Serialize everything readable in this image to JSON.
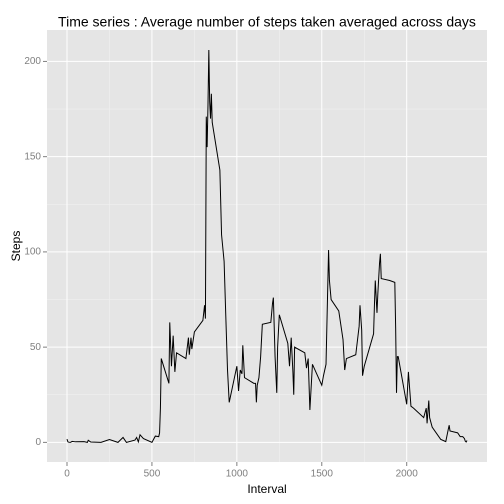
{
  "chart_data": {
    "type": "line",
    "title": "Time series : Average number of steps taken averaged across days",
    "x_label": "Interval",
    "y_label": "Steps",
    "xlim": [
      -117.75,
      2472.75
    ],
    "ylim": [
      -10.3,
      216.5
    ],
    "xticks": [
      0,
      500,
      1000,
      1500,
      2000
    ],
    "yticks": [
      0,
      50,
      100,
      150,
      200
    ],
    "grid": true,
    "series": [
      {
        "name": "Steps",
        "color": "#000000",
        "x": [
          0,
          5,
          10,
          20,
          30,
          50,
          100,
          120,
          125,
          140,
          200,
          250,
          300,
          330,
          350,
          400,
          410,
          420,
          430,
          440,
          450,
          500,
          520,
          540,
          545,
          550,
          555,
          600,
          605,
          615,
          625,
          635,
          645,
          700,
          715,
          720,
          730,
          735,
          750,
          800,
          810,
          815,
          820,
          825,
          830,
          835,
          840,
          845,
          850,
          855,
          900,
          910,
          925,
          935,
          945,
          955,
          1000,
          1010,
          1020,
          1030,
          1035,
          1045,
          1100,
          1110,
          1115,
          1120,
          1130,
          1140,
          1150,
          1200,
          1210,
          1215,
          1225,
          1235,
          1240,
          1250,
          1300,
          1310,
          1320,
          1330,
          1335,
          1340,
          1400,
          1410,
          1420,
          1430,
          1445,
          1500,
          1510,
          1525,
          1540,
          1545,
          1555,
          1600,
          1615,
          1625,
          1635,
          1645,
          1700,
          1720,
          1725,
          1735,
          1740,
          1750,
          1805,
          1810,
          1815,
          1825,
          1830,
          1840,
          1845,
          1850,
          1900,
          1930,
          1935,
          1940,
          1945,
          1950,
          2000,
          2010,
          2025,
          2040,
          2100,
          2115,
          2120,
          2130,
          2135,
          2150,
          2200,
          2230,
          2245,
          2250,
          2255,
          2300,
          2315,
          2330,
          2340,
          2345,
          2350,
          2355
        ],
        "values": [
          1.7,
          0.3,
          0.1,
          0,
          0.5,
          0.3,
          0.4,
          0,
          1.1,
          0.2,
          0,
          1.5,
          0,
          2.6,
          0,
          1.2,
          2.6,
          0.3,
          4,
          3,
          2,
          0,
          3.3,
          3,
          5,
          18,
          44,
          31,
          63,
          40,
          56,
          37,
          47,
          44,
          55,
          46,
          55,
          49,
          58,
          64,
          72,
          65,
          171,
          155,
          177,
          206,
          179,
          170,
          183,
          168,
          143,
          109,
          95,
          66,
          38,
          21,
          40,
          27,
          38,
          36,
          51,
          34,
          31,
          31,
          21,
          30,
          34,
          45,
          62,
          63,
          73,
          76,
          45,
          26,
          50,
          67,
          52,
          40,
          55,
          37,
          25,
          50,
          47,
          39,
          44,
          17,
          41,
          30,
          35,
          41,
          101,
          85,
          75,
          69,
          60,
          54,
          38,
          44,
          46,
          61,
          72,
          59,
          35,
          40,
          57,
          72,
          85,
          68,
          78,
          94,
          99,
          86,
          85,
          84,
          60,
          26,
          45,
          45,
          20,
          37,
          19,
          18,
          13,
          18,
          10,
          22,
          13,
          8,
          1.6,
          0.4,
          7,
          9,
          6,
          5,
          3,
          3,
          2,
          0.6,
          0.2,
          1
        ]
      }
    ]
  }
}
